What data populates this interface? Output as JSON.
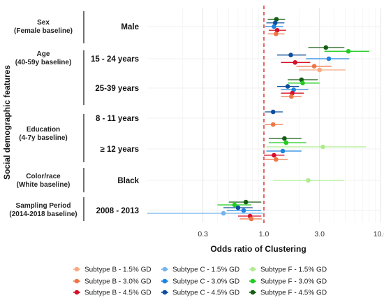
{
  "chart_data": {
    "type": "forest-plot",
    "xlabel": "Odds ratio of Clustering",
    "ylabel": "Social demographic features",
    "x_scale": "log",
    "xlim": [
      0.1,
      10.0
    ],
    "x_ticks": [
      {
        "value": 0.3,
        "label": "0.3"
      },
      {
        "value": 1.0,
        "label": "1.0"
      },
      {
        "value": 3.0,
        "label": "3.0"
      },
      {
        "value": 10.0,
        "label": "10.0"
      }
    ],
    "reference_line": 1.0,
    "grid": true,
    "groups": [
      {
        "key": "sex",
        "title": [
          "Sex",
          "(Female baseline)"
        ]
      },
      {
        "key": "age",
        "title": [
          "Age",
          "(40-59y baseline)"
        ]
      },
      {
        "key": "education",
        "title": [
          "Education",
          "(4-7y baseline)"
        ]
      },
      {
        "key": "color",
        "title": [
          "Color/race",
          "(White baseline)"
        ]
      },
      {
        "key": "sampling",
        "title": [
          "Sampling Period",
          "(2014-2018 baseline)"
        ]
      }
    ],
    "rows": [
      {
        "key": "male",
        "group": "sex",
        "label": "Male"
      },
      {
        "key": "age15",
        "group": "age",
        "label": "15 - 24 years"
      },
      {
        "key": "age25",
        "group": "age",
        "label": "25-39 years"
      },
      {
        "key": "edu8",
        "group": "education",
        "label": "8 - 11 years"
      },
      {
        "key": "edu12",
        "group": "education",
        "label": "≥ 12 years"
      },
      {
        "key": "black",
        "group": "color",
        "label": "Black"
      },
      {
        "key": "period",
        "group": "sampling",
        "label": "2008 - 2013"
      }
    ],
    "series": [
      {
        "name": "Subtype B - 1.5% GD",
        "color": "#f7a981"
      },
      {
        "name": "Subtype B - 3.0% GD",
        "color": "#ef7546"
      },
      {
        "name": "Subtype B - 4.5% GD",
        "color": "#d7102a"
      },
      {
        "name": "Subtype C - 1.5% GD",
        "color": "#73b4ee"
      },
      {
        "name": "Subtype C - 3.0% GD",
        "color": "#1f83e0"
      },
      {
        "name": "Subtype C - 4.5% GD",
        "color": "#0d4f9c"
      },
      {
        "name": "Subtype F - 1.5% GD",
        "color": "#aeed8e"
      },
      {
        "name": "Subtype F - 3.0% GD",
        "color": "#22cc22"
      },
      {
        "name": "Subtype F - 4.5% GD",
        "color": "#145e13"
      }
    ],
    "estimates": [
      {
        "row": "male",
        "series": "Subtype C - 4.5% GD",
        "or": 1.25,
        "lo": 1.05,
        "hi": 1.5
      },
      {
        "row": "male",
        "series": "Subtype F - 4.5% GD",
        "or": 1.28,
        "lo": 1.08,
        "hi": 1.52
      },
      {
        "row": "male",
        "series": "Subtype C - 3.0% GD",
        "or": 1.22,
        "lo": 1.02,
        "hi": 1.46
      },
      {
        "row": "male",
        "series": "Subtype B - 4.5% GD",
        "or": 1.3,
        "lo": 1.1,
        "hi": 1.55
      },
      {
        "row": "male",
        "series": "Subtype B - 3.0% GD",
        "or": 1.27,
        "lo": 1.08,
        "hi": 1.5
      },
      {
        "row": "age15",
        "series": "Subtype F - 4.5% GD",
        "or": 3.4,
        "lo": 2.4,
        "hi": 4.9
      },
      {
        "row": "age15",
        "series": "Subtype F - 3.0% GD",
        "or": 5.3,
        "lo": 3.3,
        "hi": 8.0
      },
      {
        "row": "age15",
        "series": "Subtype C - 4.5% GD",
        "or": 1.7,
        "lo": 1.3,
        "hi": 2.3
      },
      {
        "row": "age15",
        "series": "Subtype C - 3.0% GD",
        "or": 3.6,
        "lo": 2.3,
        "hi": 5.4
      },
      {
        "row": "age15",
        "series": "Subtype B - 4.5% GD",
        "or": 1.85,
        "lo": 1.4,
        "hi": 2.5
      },
      {
        "row": "age15",
        "series": "Subtype B - 3.0% GD",
        "or": 2.7,
        "lo": 1.9,
        "hi": 3.8
      },
      {
        "row": "age15",
        "series": "Subtype B - 1.5% GD",
        "or": 3.0,
        "lo": 2.0,
        "hi": 5.0
      },
      {
        "row": "age25",
        "series": "Subtype F - 4.5% GD",
        "or": 2.1,
        "lo": 1.6,
        "hi": 2.9
      },
      {
        "row": "age25",
        "series": "Subtype F - 3.0% GD",
        "or": 2.15,
        "lo": 1.6,
        "hi": 3.0
      },
      {
        "row": "age25",
        "series": "Subtype C - 4.5% GD",
        "or": 1.6,
        "lo": 1.3,
        "hi": 2.0
      },
      {
        "row": "age25",
        "series": "Subtype C - 3.0% GD",
        "or": 1.8,
        "lo": 1.4,
        "hi": 2.4
      },
      {
        "row": "age25",
        "series": "Subtype B - 4.5% GD",
        "or": 1.75,
        "lo": 1.4,
        "hi": 2.2
      },
      {
        "row": "age25",
        "series": "Subtype B - 3.0% GD",
        "or": 1.72,
        "lo": 1.4,
        "hi": 2.1
      },
      {
        "row": "edu8",
        "series": "Subtype C - 4.5% GD",
        "or": 1.2,
        "lo": 1.02,
        "hi": 1.45
      },
      {
        "row": "edu8",
        "series": "Subtype B - 3.0% GD",
        "or": 1.2,
        "lo": 1.02,
        "hi": 1.45
      },
      {
        "row": "edu12",
        "series": "Subtype F - 4.5% GD",
        "or": 1.5,
        "lo": 1.1,
        "hi": 2.1
      },
      {
        "row": "edu12",
        "series": "Subtype F - 3.0% GD",
        "or": 1.55,
        "lo": 1.1,
        "hi": 2.3
      },
      {
        "row": "edu12",
        "series": "Subtype F - 1.5% GD",
        "or": 3.2,
        "lo": 1.05,
        "hi": 7.5
      },
      {
        "row": "edu12",
        "series": "Subtype C - 3.0% GD",
        "or": 1.45,
        "lo": 1.05,
        "hi": 2.1
      },
      {
        "row": "edu12",
        "series": "Subtype B - 4.5% GD",
        "or": 1.22,
        "lo": 1.0,
        "hi": 1.5
      },
      {
        "row": "edu12",
        "series": "Subtype B - 3.0% GD",
        "or": 1.27,
        "lo": 1.02,
        "hi": 1.6
      },
      {
        "row": "black",
        "series": "Subtype F - 1.5% GD",
        "or": 2.4,
        "lo": 1.2,
        "hi": 4.9
      },
      {
        "row": "period",
        "series": "Subtype F - 4.5% GD",
        "or": 0.7,
        "lo": 0.5,
        "hi": 0.95
      },
      {
        "row": "period",
        "series": "Subtype F - 3.0% GD",
        "or": 0.56,
        "lo": 0.4,
        "hi": 0.78
      },
      {
        "row": "period",
        "series": "Subtype C - 4.5% GD",
        "or": 0.6,
        "lo": 0.45,
        "hi": 0.8
      },
      {
        "row": "period",
        "series": "Subtype C - 3.0% GD",
        "or": 0.67,
        "lo": 0.48,
        "hi": 0.95
      },
      {
        "row": "period",
        "series": "Subtype C - 1.5% GD",
        "or": 0.45,
        "lo": 0.1,
        "hi": 0.98
      },
      {
        "row": "period",
        "series": "Subtype B - 4.5% GD",
        "or": 0.76,
        "lo": 0.6,
        "hi": 0.95
      },
      {
        "row": "period",
        "series": "Subtype B - 3.0% GD",
        "or": 0.78,
        "lo": 0.62,
        "hi": 0.96
      }
    ]
  }
}
